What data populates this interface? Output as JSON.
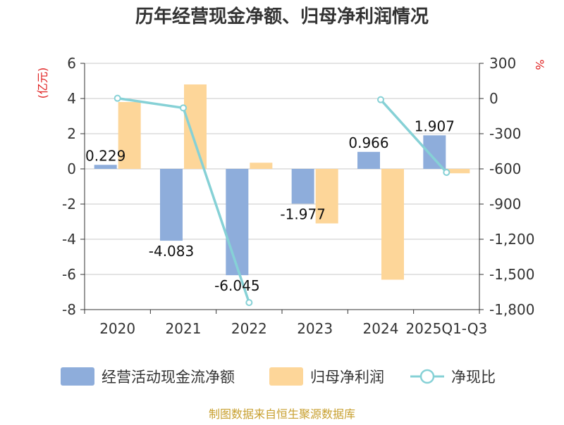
{
  "chart_data": {
    "type": "bar",
    "title": "历年经营现金净额、归母净利润情况",
    "categories": [
      "2020",
      "2021",
      "2022",
      "2023",
      "2024",
      "2025Q1-Q3"
    ],
    "left_axis": {
      "unit_label": "(亿元)",
      "ylim": [
        -8,
        6
      ],
      "ticks": [
        6,
        4,
        2,
        0,
        -2,
        -4,
        -6,
        -8
      ]
    },
    "right_axis": {
      "unit_label": "%",
      "ylim": [
        -1800,
        300
      ],
      "ticks": [
        "300",
        "0",
        "-300",
        "-600",
        "-900",
        "-1,200",
        "-1,500",
        "-1,800"
      ]
    },
    "series": [
      {
        "name": "经营活动现金流净额",
        "type": "bar",
        "axis": "left",
        "color": "#8eaddb",
        "values": [
          0.229,
          -4.083,
          -6.045,
          -1.977,
          0.966,
          1.907
        ],
        "labels": [
          "0.229",
          "-4.083",
          "-6.045",
          "-1.977",
          "0.966",
          "1.907"
        ]
      },
      {
        "name": "归母净利润",
        "type": "bar",
        "axis": "left",
        "color": "#fdd699",
        "values": [
          3.8,
          4.8,
          0.35,
          -3.1,
          -6.3,
          -0.25
        ]
      },
      {
        "name": "净现比",
        "type": "line",
        "axis": "right",
        "color": "#86d1d6",
        "values": [
          2,
          -80,
          -1740,
          null,
          -10,
          -630
        ]
      }
    ],
    "grid": true,
    "legend_position": "bottom"
  },
  "footer": {
    "source": "制图数据来自恒生聚源数据库"
  }
}
